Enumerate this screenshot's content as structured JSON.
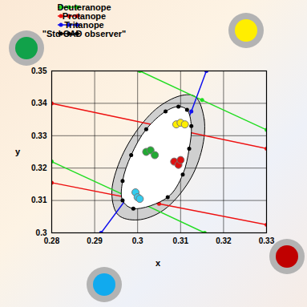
{
  "chart_data": {
    "type": "line",
    "xlabel": "x",
    "ylabel": "y",
    "xlim": [
      0.28,
      0.33
    ],
    "ylim": [
      0.3,
      0.35
    ],
    "xticks": [
      0.28,
      0.29,
      0.3,
      0.31,
      0.32,
      0.33
    ],
    "yticks": [
      0.3,
      0.31,
      0.32,
      0.33,
      0.34,
      0.35
    ],
    "grid": true,
    "legend": "top-left",
    "marker": "dot",
    "series": [
      {
        "name": "Deuteranope",
        "color": "#22dd22",
        "lines": [
          {
            "x": [
              0.3005,
              0.315,
              0.33
            ],
            "y": [
              0.35,
              0.341,
              0.3318
            ]
          },
          {
            "x": [
              0.28,
              0.298,
              0.3156
            ],
            "y": [
              0.322,
              0.311,
              0.3
            ]
          }
        ]
      },
      {
        "name": "Protanope",
        "color": "#ee1111",
        "lines": [
          {
            "x": [
              0.28,
              0.305,
              0.33
            ],
            "y": [
              0.34,
              0.333,
              0.326
            ]
          },
          {
            "x": [
              0.28,
              0.305,
              0.33
            ],
            "y": [
              0.3155,
              0.309,
              0.3025
            ]
          }
        ]
      },
      {
        "name": "Tritanope",
        "color": "#1111ee",
        "lines": [
          {
            "x": [
              0.2915,
              0.2985,
              0.3055
            ],
            "y": [
              0.3,
              0.3125,
              0.325
            ]
          },
          {
            "x": [
              0.3085,
              0.3125,
              0.316
            ],
            "y": [
              0.325,
              0.3375,
              0.35
            ]
          }
        ]
      },
      {
        "name": "\"Std CAD observer\"",
        "color": "#000000",
        "closed": true,
        "lines": [
          {
            "x": [
              0.3115,
              0.3125,
              0.312,
              0.3105,
              0.307,
              0.299,
              0.2965,
              0.2965,
              0.2985,
              0.302,
              0.3065,
              0.3095
            ],
            "y": [
              0.338,
              0.333,
              0.326,
              0.318,
              0.311,
              0.3075,
              0.31,
              0.316,
              0.324,
              0.332,
              0.3375,
              0.339
            ]
          }
        ]
      }
    ],
    "boundary": {
      "color": "#cfcfcf",
      "x": [
        0.3135,
        0.3155,
        0.315,
        0.312,
        0.306,
        0.3,
        0.2955,
        0.294,
        0.2955,
        0.2995,
        0.305,
        0.3105
      ],
      "y": [
        0.342,
        0.335,
        0.326,
        0.316,
        0.307,
        0.304,
        0.3055,
        0.312,
        0.321,
        0.331,
        0.339,
        0.3425
      ]
    },
    "points": [
      {
        "color": "#ffee00",
        "x": [
          0.309,
          0.31,
          0.311
        ],
        "y": [
          0.3335,
          0.334,
          0.3335
        ]
      },
      {
        "color": "#22aa33",
        "x": [
          0.302,
          0.303,
          0.304
        ],
        "y": [
          0.325,
          0.3255,
          0.324
        ]
      },
      {
        "color": "#dd1111",
        "x": [
          0.3085,
          0.3095,
          0.31
        ],
        "y": [
          0.322,
          0.321,
          0.3225
        ]
      },
      {
        "color": "#33ccee",
        "x": [
          0.2995,
          0.3,
          0.3005
        ],
        "y": [
          0.3125,
          0.311,
          0.3105
        ]
      }
    ]
  }
}
